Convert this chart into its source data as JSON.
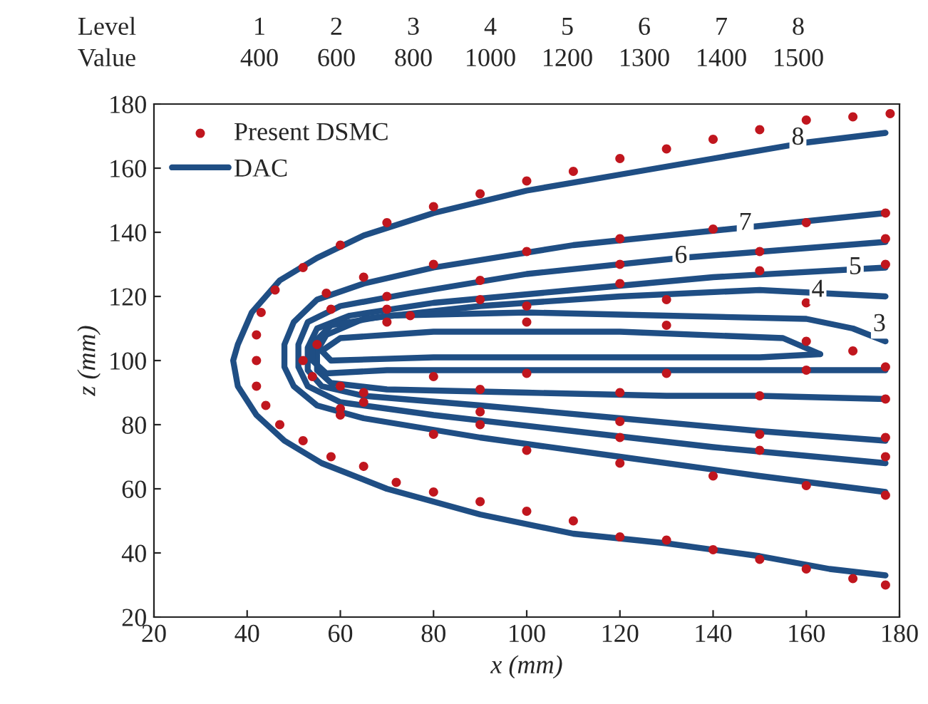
{
  "chart_data": {
    "type": "line",
    "xlabel": "x (mm)",
    "ylabel": "z (mm)",
    "xlim": [
      20,
      180
    ],
    "ylim": [
      20,
      180
    ],
    "xticks": [
      20,
      40,
      60,
      80,
      100,
      120,
      140,
      160,
      180
    ],
    "yticks": [
      20,
      40,
      60,
      80,
      100,
      120,
      140,
      160,
      180
    ],
    "grid": false,
    "legend": "top left",
    "series": [
      {
        "name": "Present DSMC",
        "type": "scatter",
        "marker": "circle",
        "color": "#c0161e",
        "x": [
          178,
          170,
          160,
          150,
          140,
          130,
          120,
          110,
          100,
          90,
          80,
          70,
          60,
          52,
          46,
          43,
          42,
          42,
          42,
          44,
          47,
          52,
          58,
          65,
          72,
          80,
          90,
          100,
          110,
          120,
          130,
          140,
          150,
          160,
          170,
          177,
          177,
          160,
          140,
          120,
          100,
          80,
          65,
          57,
          177,
          150,
          120,
          90,
          70,
          58,
          177,
          150,
          120,
          90,
          70,
          160,
          130,
          100,
          75,
          170,
          160,
          130,
          100,
          70,
          55,
          52,
          54,
          60,
          80,
          100,
          130,
          160,
          177,
          177,
          150,
          120,
          90,
          65,
          177,
          150,
          120,
          90,
          65,
          177,
          150,
          120,
          90,
          60,
          177,
          160,
          140,
          120,
          100,
          80,
          60
        ],
        "values": [
          177,
          176,
          175,
          172,
          169,
          166,
          163,
          159,
          156,
          152,
          148,
          143,
          136,
          129,
          122,
          115,
          108,
          100,
          92,
          86,
          80,
          75,
          70,
          67,
          62,
          59,
          56,
          53,
          50,
          45,
          44,
          41,
          38,
          35,
          32,
          30,
          146,
          143,
          141,
          138,
          134,
          130,
          126,
          121,
          138,
          134,
          130,
          125,
          120,
          116,
          130,
          128,
          124,
          119,
          116,
          118,
          119,
          117,
          114,
          103,
          106,
          111,
          112,
          112,
          105,
          100,
          95,
          92,
          95,
          96,
          96,
          97,
          98,
          88,
          89,
          90,
          91,
          90,
          76,
          77,
          81,
          84,
          87,
          70,
          72,
          76,
          80,
          85,
          58,
          61,
          64,
          68,
          72,
          77,
          83
        ]
      },
      {
        "name": "DAC",
        "color": "#1f4e84",
        "x": [
          177,
          160,
          140,
          120,
          100,
          80,
          65,
          55,
          47,
          41,
          38,
          37,
          38,
          42,
          48,
          56,
          70,
          90,
          110,
          130,
          150,
          165,
          177
        ],
        "values": [
          171,
          168,
          163,
          158,
          153,
          146,
          139,
          132,
          125,
          115,
          105,
          100,
          92,
          83,
          75,
          68,
          60,
          52,
          46,
          43,
          39,
          35,
          33
        ]
      },
      {
        "color": "#1f4e84",
        "x": [
          177,
          110,
          80,
          65,
          55,
          50,
          48,
          48,
          50,
          55,
          65,
          90,
          120,
          150,
          177
        ],
        "values": [
          146,
          136,
          129,
          124,
          119,
          112,
          105,
          98,
          92,
          86,
          82,
          76,
          70,
          64,
          59
        ]
      },
      {
        "color": "#1f4e84",
        "x": [
          177,
          133,
          100,
          75,
          60,
          53,
          51,
          51,
          53,
          60,
          80,
          110,
          140,
          177
        ],
        "values": [
          137,
          132,
          127,
          121,
          117,
          112,
          105,
          98,
          92,
          87,
          83,
          78,
          73,
          68
        ]
      },
      {
        "color": "#1f4e84",
        "x": [
          177,
          140,
          110,
          80,
          62,
          55,
          53,
          53,
          56,
          65,
          90,
          120,
          150,
          177
        ],
        "values": [
          129,
          126,
          122,
          118,
          114,
          110,
          104,
          97,
          92,
          89,
          86,
          82,
          78,
          75
        ]
      },
      {
        "color": "#1f4e84",
        "x": [
          177,
          150,
          120,
          90,
          65,
          57,
          55,
          55,
          58,
          70,
          100,
          130,
          150,
          177
        ],
        "values": [
          120,
          122,
          120,
          117,
          113,
          108,
          103,
          97,
          93,
          91,
          90,
          89,
          89,
          88
        ]
      },
      {
        "color": "#1f4e84",
        "x": [
          177,
          170,
          160,
          130,
          100,
          70,
          58,
          54,
          54,
          57,
          70,
          100,
          130,
          160,
          177
        ],
        "values": [
          106,
          110,
          113,
          114,
          115,
          114,
          111,
          105,
          100,
          96,
          97,
          97,
          97,
          97,
          97
        ]
      },
      {
        "color": "#1f4e84",
        "x": [
          163,
          155,
          120,
          80,
          60,
          56
        ],
        "values": [
          102,
          107,
          109,
          109,
          107,
          103
        ]
      },
      {
        "color": "#1f4e84",
        "x": [
          56,
          58,
          80,
          120,
          150,
          163
        ],
        "values": [
          103,
          100,
          101,
          101,
          101,
          102
        ]
      }
    ],
    "annotations": [
      "Level",
      "1",
      "2",
      "3",
      "4",
      "5",
      "6",
      "7",
      "8",
      "Value",
      "400",
      "600",
      "800",
      "1000",
      "1200",
      "1300",
      "1400",
      "1500",
      {
        "text": "8",
        "x": 158.2,
        "y": 169.3
      },
      {
        "text": "7",
        "x": 146.9,
        "y": 142.7
      },
      {
        "text": "6",
        "x": 133.1,
        "y": 132.4
      },
      {
        "text": "5",
        "x": 170.5,
        "y": 128.9
      },
      {
        "text": "4",
        "x": 162.5,
        "y": 121.8
      },
      {
        "text": "3",
        "x": 175.7,
        "y": 111.1
      }
    ]
  }
}
